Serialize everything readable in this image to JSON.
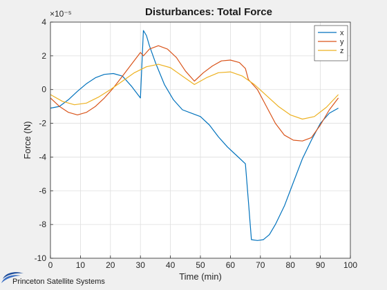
{
  "chart_data": {
    "type": "line",
    "title": "Disturbances: Total Force",
    "xlabel": "Time (min)",
    "ylabel": "Force (N)",
    "y_scale_note": "×10⁻⁵",
    "xlim": [
      0,
      100
    ],
    "ylim": [
      -10,
      4
    ],
    "xticks": [
      0,
      10,
      20,
      30,
      40,
      50,
      60,
      70,
      80,
      90,
      100
    ],
    "yticks": [
      -10,
      -8,
      -6,
      -4,
      -2,
      0,
      2,
      4
    ],
    "grid": true,
    "legend_position": "top-right",
    "series": [
      {
        "name": "x",
        "color": "#0072BD",
        "x": [
          0,
          3,
          6,
          9,
          12,
          15,
          18,
          21,
          24,
          27,
          30,
          31,
          32,
          33,
          35,
          38,
          41,
          44,
          47,
          50,
          53,
          56,
          59,
          62,
          65,
          66,
          67,
          69,
          71,
          73,
          75,
          78,
          81,
          84,
          87,
          90,
          93,
          96
        ],
        "values": [
          -1.1,
          -1.0,
          -0.6,
          -0.1,
          0.35,
          0.7,
          0.9,
          0.95,
          0.8,
          0.2,
          -0.5,
          3.5,
          3.2,
          2.6,
          1.6,
          0.3,
          -0.6,
          -1.2,
          -1.4,
          -1.6,
          -2.1,
          -2.8,
          -3.4,
          -3.9,
          -4.4,
          -6.6,
          -8.9,
          -8.95,
          -8.9,
          -8.6,
          -8.0,
          -6.9,
          -5.5,
          -4.1,
          -3.0,
          -2.0,
          -1.4,
          -1.1
        ]
      },
      {
        "name": "y",
        "color": "#D95319",
        "x": [
          0,
          3,
          6,
          9,
          12,
          15,
          18,
          21,
          24,
          27,
          30,
          31,
          33,
          36,
          39,
          42,
          45,
          48,
          51,
          54,
          57,
          60,
          63,
          65,
          66,
          69,
          72,
          75,
          78,
          81,
          84,
          87,
          90,
          93,
          96
        ],
        "values": [
          -0.5,
          -1.0,
          -1.35,
          -1.5,
          -1.35,
          -1.0,
          -0.5,
          0.1,
          0.8,
          1.5,
          2.2,
          2.0,
          2.4,
          2.6,
          2.4,
          1.9,
          1.1,
          0.5,
          1.0,
          1.4,
          1.7,
          1.75,
          1.6,
          1.25,
          0.6,
          0.0,
          -1.0,
          -2.0,
          -2.7,
          -3.0,
          -3.05,
          -2.85,
          -2.1,
          -1.2,
          -0.5
        ]
      },
      {
        "name": "z",
        "color": "#EDB120",
        "x": [
          0,
          4,
          8,
          12,
          16,
          20,
          24,
          28,
          32,
          36,
          40,
          44,
          48,
          52,
          56,
          60,
          64,
          68,
          72,
          76,
          80,
          84,
          88,
          92,
          96
        ],
        "values": [
          -0.3,
          -0.7,
          -0.9,
          -0.8,
          -0.45,
          0.0,
          0.5,
          1.0,
          1.35,
          1.5,
          1.3,
          0.8,
          0.3,
          0.7,
          1.0,
          1.05,
          0.8,
          0.3,
          -0.35,
          -1.0,
          -1.5,
          -1.75,
          -1.6,
          -1.05,
          -0.3
        ]
      }
    ]
  },
  "logo": {
    "text": "Princeton Satellite Systems"
  }
}
